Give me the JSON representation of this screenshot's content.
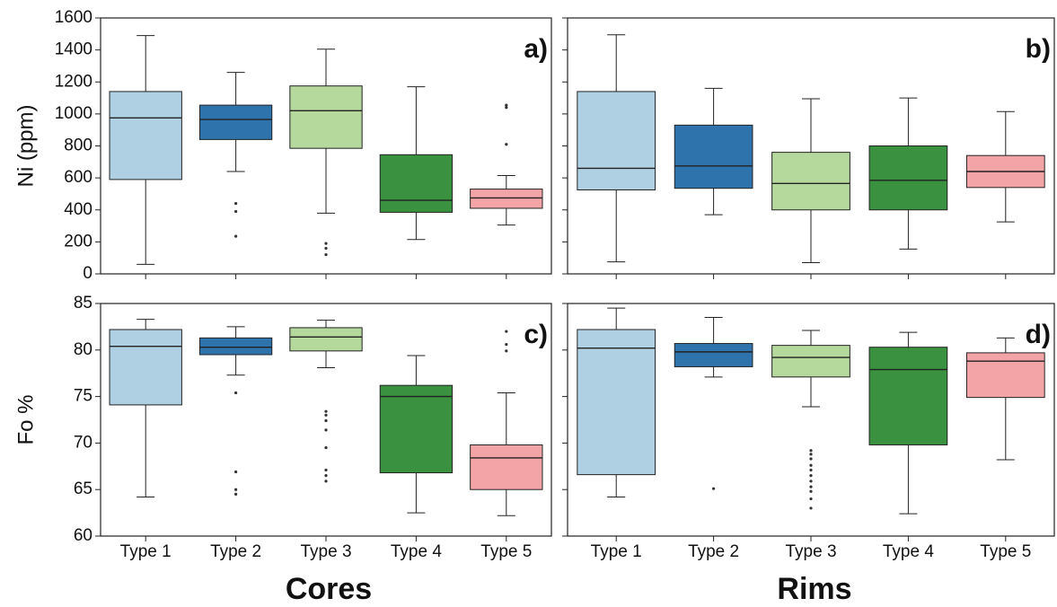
{
  "column_titles": [
    "Cores",
    "Rims"
  ],
  "chart_data": [
    {
      "type": "box",
      "panel_label": "a)",
      "ylabel": "Ni (ppm)",
      "ylim": [
        0,
        1600
      ],
      "yticks": [
        0,
        200,
        400,
        600,
        800,
        1000,
        1200,
        1400,
        1600
      ],
      "ytick_labels": true,
      "colors": [
        "#afcfe3",
        "#2f73ac",
        "#b5d89d",
        "#3a9140",
        "#f3a4a6"
      ],
      "stats": [
        {
          "low": 60,
          "q1": 590,
          "median": 975,
          "q3": 1140,
          "high": 1490,
          "outliers": []
        },
        {
          "low": 640,
          "q1": 840,
          "median": 965,
          "q3": 1055,
          "high": 1260,
          "outliers": [
            440,
            390,
            235
          ]
        },
        {
          "low": 380,
          "q1": 785,
          "median": 1020,
          "q3": 1175,
          "high": 1405,
          "outliers": [
            190,
            160,
            120
          ]
        },
        {
          "low": 215,
          "q1": 385,
          "median": 460,
          "q3": 745,
          "high": 1170,
          "outliers": []
        },
        {
          "low": 305,
          "q1": 410,
          "median": 475,
          "q3": 530,
          "high": 615,
          "outliers": [
            1055,
            1040,
            810
          ]
        }
      ]
    },
    {
      "type": "box",
      "panel_label": "b)",
      "ylim": [
        0,
        1600
      ],
      "yticks": [
        0,
        200,
        400,
        600,
        800,
        1000,
        1200,
        1400,
        1600
      ],
      "ytick_labels": false,
      "colors": [
        "#afcfe3",
        "#2f73ac",
        "#b5d89d",
        "#3a9140",
        "#f3a4a6"
      ],
      "stats": [
        {
          "low": 75,
          "q1": 525,
          "median": 660,
          "q3": 1140,
          "high": 1495,
          "outliers": []
        },
        {
          "low": 370,
          "q1": 535,
          "median": 675,
          "q3": 930,
          "high": 1160,
          "outliers": []
        },
        {
          "low": 70,
          "q1": 400,
          "median": 565,
          "q3": 760,
          "high": 1095,
          "outliers": []
        },
        {
          "low": 155,
          "q1": 400,
          "median": 585,
          "q3": 800,
          "high": 1100,
          "outliers": []
        },
        {
          "low": 325,
          "q1": 540,
          "median": 640,
          "q3": 740,
          "high": 1015,
          "outliers": []
        }
      ]
    },
    {
      "type": "box",
      "panel_label": "c)",
      "ylabel": "Fo %",
      "ylim": [
        60,
        85
      ],
      "yticks": [
        60,
        65,
        70,
        75,
        80,
        85
      ],
      "ytick_labels": true,
      "categories": [
        "Type 1",
        "Type 2",
        "Type 3",
        "Type 4",
        "Type 5"
      ],
      "colors": [
        "#afcfe3",
        "#2f73ac",
        "#b5d89d",
        "#3a9140",
        "#f3a4a6"
      ],
      "stats": [
        {
          "low": 64.2,
          "q1": 74.1,
          "median": 80.4,
          "q3": 82.2,
          "high": 83.3,
          "outliers": []
        },
        {
          "low": 77.3,
          "q1": 79.5,
          "median": 80.3,
          "q3": 81.3,
          "high": 82.5,
          "outliers": [
            75.4,
            66.9,
            65.0,
            64.5
          ]
        },
        {
          "low": 78.1,
          "q1": 79.9,
          "median": 81.4,
          "q3": 82.4,
          "high": 83.2,
          "outliers": [
            73.4,
            73.0,
            72.4,
            71.4,
            69.5,
            67.1,
            66.5,
            65.9
          ]
        },
        {
          "low": 62.5,
          "q1": 66.8,
          "median": 75.0,
          "q3": 76.2,
          "high": 79.4,
          "outliers": []
        },
        {
          "low": 62.2,
          "q1": 65.0,
          "median": 68.4,
          "q3": 69.8,
          "high": 75.4,
          "outliers": [
            82.0,
            80.6,
            79.9
          ]
        }
      ]
    },
    {
      "type": "box",
      "panel_label": "d)",
      "ylim": [
        60,
        85
      ],
      "yticks": [
        60,
        65,
        70,
        75,
        80,
        85
      ],
      "ytick_labels": false,
      "categories": [
        "Type 1",
        "Type 2",
        "Type 3",
        "Type 4",
        "Type 5"
      ],
      "colors": [
        "#afcfe3",
        "#2f73ac",
        "#b5d89d",
        "#3a9140",
        "#f3a4a6"
      ],
      "stats": [
        {
          "low": 64.2,
          "q1": 66.6,
          "median": 80.2,
          "q3": 82.2,
          "high": 84.5,
          "outliers": []
        },
        {
          "low": 77.1,
          "q1": 78.2,
          "median": 79.8,
          "q3": 80.7,
          "high": 83.5,
          "outliers": [
            65.1
          ]
        },
        {
          "low": 73.9,
          "q1": 77.1,
          "median": 79.2,
          "q3": 80.5,
          "high": 82.1,
          "outliers": [
            69.2,
            68.8,
            68.3,
            67.6,
            67.1,
            66.5,
            65.9,
            65.3,
            64.8,
            64.0,
            63.0
          ]
        },
        {
          "low": 62.4,
          "q1": 69.8,
          "median": 77.9,
          "q3": 80.3,
          "high": 81.9,
          "outliers": []
        },
        {
          "low": 68.2,
          "q1": 74.9,
          "median": 78.8,
          "q3": 79.7,
          "high": 81.3,
          "outliers": []
        }
      ]
    }
  ]
}
